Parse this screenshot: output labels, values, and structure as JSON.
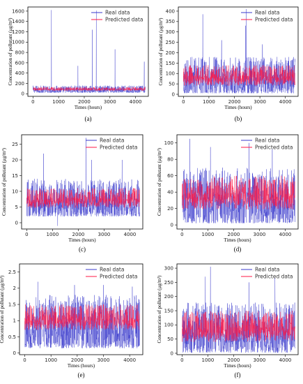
{
  "colors": {
    "real": "#3a3acc",
    "predicted": "#ff1744",
    "frame": "#000000"
  },
  "chart_data": [
    {
      "type": "line",
      "panel": "(a)",
      "xlabel": "Times (hours)",
      "ylabel": "Concentration of pollutant (μg/m³)",
      "xlim": [
        -200,
        4500
      ],
      "ylim": [
        -50,
        1680
      ],
      "xticks": [
        0,
        1000,
        2000,
        3000,
        4000
      ],
      "yticks": [
        0,
        200,
        400,
        600,
        800,
        1000,
        1200,
        1400,
        1600
      ],
      "legend": [
        "Real data",
        "Predicted data"
      ],
      "series": [
        {
          "name": "Real data",
          "summary": {
            "baseline_min": 20,
            "baseline_max": 160,
            "spikes": [
              [
                720,
                1620
              ],
              [
                2310,
                1240
              ],
              [
                2470,
                1610
              ],
              [
                3200,
                860
              ],
              [
                4340,
                620
              ],
              [
                1750,
                540
              ]
            ]
          }
        },
        {
          "name": "Predicted data",
          "summary": {
            "baseline_min": 40,
            "baseline_max": 130
          }
        }
      ]
    },
    {
      "type": "line",
      "panel": "(b)",
      "xlabel": "Times (hours)",
      "ylabel": "Concentration of pollutant (μg/m³)",
      "xlim": [
        -200,
        4500
      ],
      "ylim": [
        -10,
        420
      ],
      "xticks": [
        0,
        1000,
        2000,
        3000,
        4000
      ],
      "yticks": [
        0,
        50,
        100,
        150,
        200,
        250,
        300,
        350,
        400
      ],
      "legend": [
        "Real data",
        "Predicted data"
      ],
      "series": [
        {
          "name": "Real data",
          "summary": {
            "baseline_min": 5,
            "baseline_max": 180,
            "spikes": [
              [
                760,
                385
              ],
              [
                2470,
                410
              ],
              [
                2440,
                330
              ],
              [
                1500,
                260
              ],
              [
                3100,
                240
              ]
            ]
          }
        },
        {
          "name": "Predicted data",
          "summary": {
            "baseline_min": 15,
            "baseline_max": 140
          }
        }
      ]
    },
    {
      "type": "line",
      "panel": "(c)",
      "xlabel": "Times (hours)",
      "ylabel": "Concentration of pollutant (μg/m³)",
      "xlim": [
        -200,
        4500
      ],
      "ylim": [
        -2,
        28
      ],
      "xticks": [
        0,
        1000,
        2000,
        3000,
        4000
      ],
      "yticks": [
        0,
        5,
        10,
        15,
        20,
        25
      ],
      "legend": [
        "Real data",
        "Predicted data"
      ],
      "series": [
        {
          "name": "Real data",
          "summary": {
            "baseline_min": 2,
            "baseline_max": 14,
            "spikes": [
              [
                650,
                22
              ],
              [
                2300,
                27
              ],
              [
                2520,
                20
              ],
              [
                3700,
                20
              ],
              [
                1200,
                -1
              ]
            ]
          }
        },
        {
          "name": "Predicted data",
          "summary": {
            "baseline_min": 3,
            "baseline_max": 11
          }
        }
      ]
    },
    {
      "type": "line",
      "panel": "(d)",
      "xlabel": "Times (hours)",
      "ylabel": "Concentration of pollutant (μg/m³)",
      "xlim": [
        -200,
        4500
      ],
      "ylim": [
        -5,
        110
      ],
      "xticks": [
        0,
        1000,
        2000,
        3000,
        4000
      ],
      "yticks": [
        0,
        20,
        40,
        60,
        80,
        100
      ],
      "legend": [
        "Real data",
        "Predicted data"
      ],
      "series": [
        {
          "name": "Real data",
          "summary": {
            "baseline_min": 2,
            "baseline_max": 70,
            "spikes": [
              [
                300,
                105
              ],
              [
                1100,
                95
              ],
              [
                2600,
                100
              ],
              [
                3500,
                92
              ]
            ]
          }
        },
        {
          "name": "Predicted data",
          "summary": {
            "baseline_min": 8,
            "baseline_max": 60
          }
        }
      ]
    },
    {
      "type": "line",
      "panel": "(e)",
      "xlabel": "Times (hours)",
      "ylabel": "Concentration of pollutant (μg/m³)",
      "xlim": [
        -200,
        4500
      ],
      "ylim": [
        -0.05,
        2.75
      ],
      "xticks": [
        0,
        1000,
        2000,
        3000,
        4000
      ],
      "yticks": [
        0.0,
        0.5,
        1.0,
        1.5,
        2.0,
        2.5
      ],
      "legend": [
        "Real data",
        "Predicted data"
      ],
      "series": [
        {
          "name": "Real data",
          "summary": {
            "baseline_min": 0.15,
            "baseline_max": 1.8,
            "spikes": [
              [
                500,
                2.2
              ],
              [
                1900,
                2.1
              ],
              [
                3000,
                2.1
              ],
              [
                4100,
                2.05
              ]
            ]
          }
        },
        {
          "name": "Predicted data",
          "summary": {
            "baseline_min": 0.5,
            "baseline_max": 1.5
          }
        }
      ]
    },
    {
      "type": "line",
      "panel": "(f)",
      "xlabel": "Times (hours)",
      "ylabel": "Concentration of pollutant (μg/m³)",
      "xlim": [
        -200,
        4500
      ],
      "ylim": [
        -5,
        315
      ],
      "xticks": [
        0,
        1000,
        2000,
        3000,
        4000
      ],
      "yticks": [
        0,
        50,
        100,
        150,
        200,
        250,
        300
      ],
      "legend": [
        "Real data",
        "Predicted data"
      ],
      "series": [
        {
          "name": "Real data",
          "summary": {
            "baseline_min": 2,
            "baseline_max": 180,
            "spikes": [
              [
                1100,
                305
              ],
              [
                900,
                270
              ],
              [
                3600,
                265
              ],
              [
                2600,
                250
              ]
            ]
          }
        },
        {
          "name": "Predicted data",
          "summary": {
            "baseline_min": 10,
            "baseline_max": 150
          }
        }
      ]
    }
  ]
}
